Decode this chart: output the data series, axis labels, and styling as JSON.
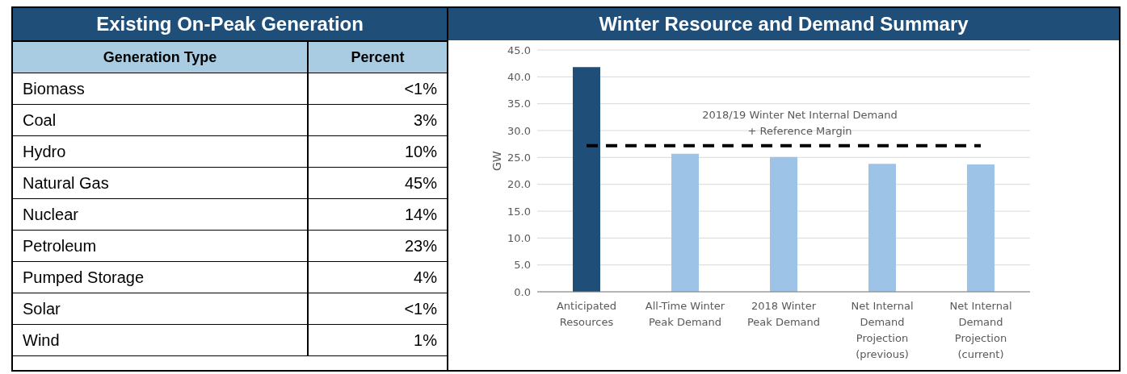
{
  "chart_data": [
    {
      "type": "other",
      "title": "Existing On-Peak Generation",
      "annotations": [
        "Generation Type",
        "Percent"
      ],
      "categories": [
        "Biomass",
        "Coal",
        "Hydro",
        "Natural Gas",
        "Nuclear",
        "Petroleum",
        "Pumped Storage",
        "Solar",
        "Wind"
      ],
      "value_labels": [
        "<1%",
        "3%",
        "10%",
        "45%",
        "14%",
        "23%",
        "4%",
        "<1%",
        "1%"
      ]
    },
    {
      "type": "bar",
      "title": "Winter Resource and Demand Summary",
      "ylabel": "GW",
      "categories": [
        "Anticipated Resources",
        "All-Time Winter Peak Demand",
        "2018 Winter Peak Demand",
        "Net Internal Demand Projection (previous)",
        "Net Internal Demand Projection (current)"
      ],
      "values": [
        41.8,
        25.7,
        25.1,
        23.8,
        23.7
      ],
      "colors": [
        "#1f4e79",
        "#9dc3e6",
        "#9dc3e6",
        "#9dc3e6",
        "#9dc3e6"
      ],
      "ylim": [
        0,
        45
      ],
      "yticks": [
        {
          "value": 0,
          "label": "0.0"
        },
        {
          "value": 5,
          "label": "5.0"
        },
        {
          "value": 10,
          "label": "10.0"
        },
        {
          "value": 15,
          "label": "15.0"
        },
        {
          "value": 20,
          "label": "20.0"
        },
        {
          "value": 25,
          "label": "25.0"
        },
        {
          "value": 30,
          "label": "30.0"
        },
        {
          "value": 35,
          "label": "35.0"
        },
        {
          "value": 40,
          "label": "40.0"
        },
        {
          "value": 45,
          "label": "45.0"
        }
      ],
      "grid": "y",
      "ref_lines": [
        {
          "axis": "y",
          "value": 27.2,
          "label": "2018/19 Winter Net Internal Demand\n+ Reference Margin",
          "color": "#000000",
          "line_style": "dashed"
        }
      ]
    }
  ]
}
